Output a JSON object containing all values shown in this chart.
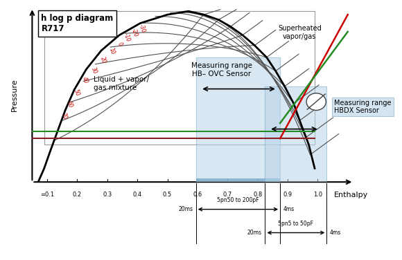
{
  "title": "h log p diagram\nR717",
  "xlabel": "Enthalpy",
  "ylabel": "Pressure",
  "background_color": "#ffffff",
  "superheated_label": "Superheated\nvapor/gas",
  "liquid_vapor_label": "Liquid + vapor/\ngas mixture",
  "measuring_range_ovc": "Measuring range\nHB– OVC Sensor",
  "measuring_range_hbdx": "Measuring range\nHBDX Sensor",
  "x_ticks": [
    "=0.1",
    "0.2",
    "0.3",
    "0.4",
    "0.5",
    "0.6",
    "0.7",
    "0.8",
    "0.9",
    "1.0"
  ],
  "x_tick_vals": [
    0.1,
    0.2,
    0.3,
    0.4,
    0.5,
    0.6,
    0.7,
    0.8,
    0.9,
    1.0
  ],
  "isotherm_label_color": "#cc0000",
  "dome_color": "#000000",
  "isotherm_color": "#505050",
  "timing_row1_label": "5pn50 to 200pF",
  "timing_row1_left": "20ms",
  "timing_row1_right": "4ms",
  "timing_row2_label": "5pn5 to 50pF",
  "timing_row2_left": "20ms",
  "timing_row2_right": "4ms"
}
